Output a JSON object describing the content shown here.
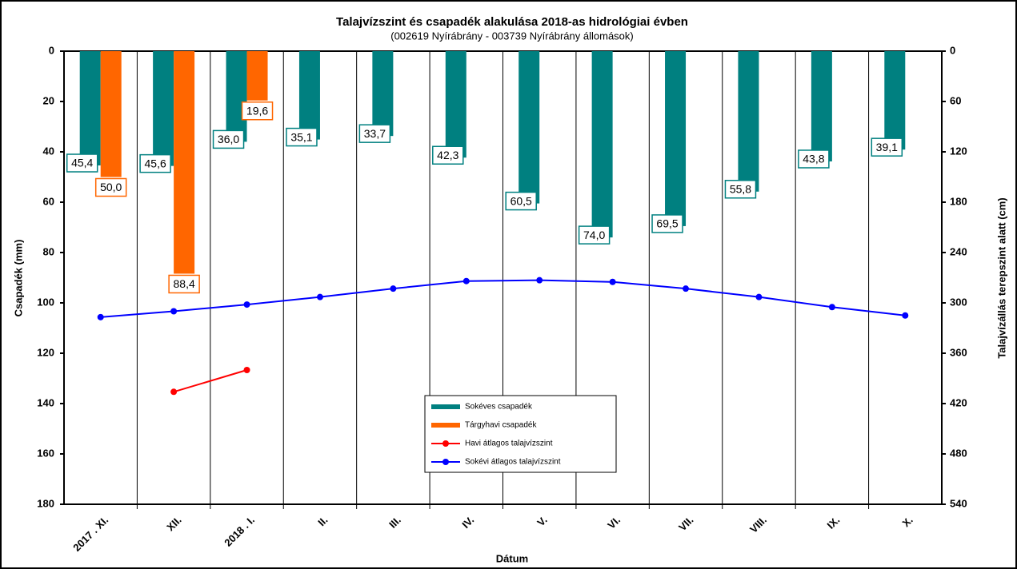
{
  "chart_data": {
    "type": "bar",
    "title": "Talajvízszint és csapadék alakulása 2018-as hidrológiai évben",
    "subtitle": "(002619 Nyírábrány  - 003739 Nyírábrány  állomások)",
    "xlabel": "Dátum",
    "ylabel": "Csapadék (mm)",
    "y2label": "Talajvízállás terepszint alatt (cm)",
    "categories": [
      "2017 . XI.",
      "XII.",
      "2018 . I.",
      "II.",
      "III.",
      "IV.",
      "V.",
      "VI.",
      "VII.",
      "VIII.",
      "IX.",
      "X."
    ],
    "ylim": [
      0,
      180
    ],
    "yticks": [
      0,
      20,
      40,
      60,
      80,
      100,
      120,
      140,
      160,
      180
    ],
    "y2lim": [
      0,
      540
    ],
    "y2ticks": [
      0,
      60,
      120,
      180,
      240,
      300,
      360,
      420,
      480,
      540
    ],
    "inverted": true,
    "grid": "x",
    "series": [
      {
        "name": "Sokéves csapadék",
        "type": "bar",
        "color": "#008080",
        "values": [
          45.4,
          45.6,
          36.0,
          35.1,
          33.7,
          42.3,
          60.5,
          74.0,
          69.5,
          55.8,
          43.8,
          39.1
        ],
        "value_labels": [
          "45,4",
          "45,6",
          "36,0",
          "35,1",
          "33,7",
          "42,3",
          "60,5",
          "74,0",
          "69,5",
          "55,8",
          "43,8",
          "39,1"
        ]
      },
      {
        "name": "Tárgyhavi csapadék",
        "type": "bar",
        "color": "#ff6600",
        "values": [
          50.0,
          88.4,
          19.6,
          null,
          null,
          null,
          null,
          null,
          null,
          null,
          null,
          null
        ],
        "value_labels": [
          "50,0",
          "88,4",
          "19,6",
          null,
          null,
          null,
          null,
          null,
          null,
          null,
          null,
          null
        ]
      },
      {
        "name": "Havi átlagos talajvízszint",
        "type": "line",
        "axis": "y2",
        "color": "#ff0000",
        "values": [
          null,
          406,
          380,
          null,
          null,
          null,
          null,
          null,
          null,
          null,
          null,
          null
        ]
      },
      {
        "name": "Sokévi átlagos talajvízszint",
        "type": "line",
        "axis": "y2",
        "color": "#0000ff",
        "values": [
          317,
          310,
          302,
          293,
          283,
          274,
          273,
          275,
          283,
          293,
          305,
          315
        ]
      }
    ],
    "legend": "center"
  }
}
